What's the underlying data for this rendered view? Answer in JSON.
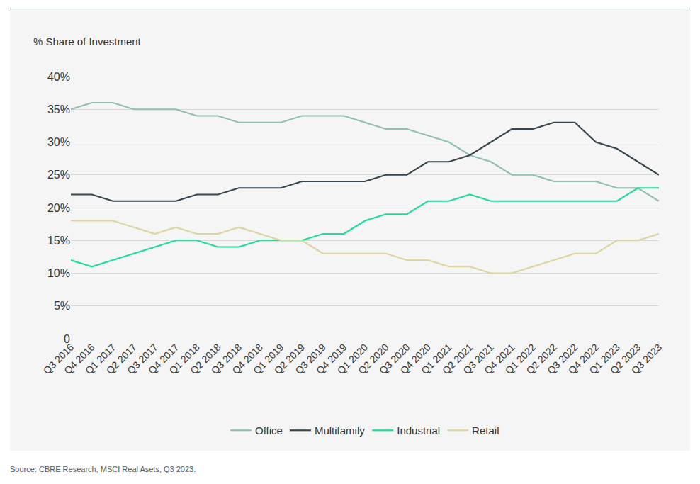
{
  "chart_data": {
    "type": "line",
    "y_label": "% Share of Investment",
    "source": "Source: CBRE Research, MSCI Real Asets, Q3 2023.",
    "categories": [
      "Q3 2016",
      "Q4 2016",
      "Q1 2017",
      "Q2 2017",
      "Q3 2017",
      "Q4 2017",
      "Q1 2018",
      "Q2 2018",
      "Q3 2018",
      "Q4 2018",
      "Q1 2019",
      "Q2 2019",
      "Q3 2019",
      "Q4 2019",
      "Q1 2020",
      "Q2 2020",
      "Q3 2020",
      "Q4 2020",
      "Q1 2021",
      "Q2 2021",
      "Q3 2021",
      "Q4 2021",
      "Q1 2022",
      "Q2 2022",
      "Q3 2022",
      "Q4 2022",
      "Q1 2023",
      "Q2 2023",
      "Q3 2023"
    ],
    "series": [
      {
        "name": "Office",
        "color": "#8fbfb5",
        "values": [
          35,
          36,
          36,
          35,
          35,
          35,
          34,
          34,
          33,
          33,
          33,
          34,
          34,
          34,
          33,
          32,
          32,
          31,
          30,
          28,
          27,
          25,
          25,
          24,
          24,
          24,
          23,
          23,
          21
        ]
      },
      {
        "name": "Multifamily",
        "color": "#37464d",
        "values": [
          22,
          22,
          21,
          21,
          21,
          21,
          22,
          22,
          23,
          23,
          23,
          24,
          24,
          24,
          24,
          25,
          25,
          27,
          27,
          28,
          30,
          32,
          32,
          33,
          33,
          30,
          29,
          27,
          25
        ]
      },
      {
        "name": "Industrial",
        "color": "#20dd96",
        "values": [
          12,
          11,
          12,
          13,
          14,
          15,
          15,
          14,
          14,
          15,
          15,
          15,
          16,
          16,
          18,
          19,
          19,
          21,
          21,
          22,
          21,
          21,
          21,
          21,
          21,
          21,
          21,
          23,
          23
        ]
      },
      {
        "name": "Retail",
        "color": "#dbd59e",
        "values": [
          18,
          18,
          18,
          17,
          16,
          17,
          16,
          16,
          17,
          16,
          15,
          15,
          13,
          13,
          13,
          13,
          12,
          12,
          11,
          11,
          10,
          10,
          11,
          12,
          13,
          13,
          15,
          15,
          16
        ]
      }
    ],
    "ylim": [
      0,
      40
    ],
    "yticks": [
      0,
      {
        "value": 5,
        "label": "5%"
      },
      {
        "value": 10,
        "label": "10%"
      },
      {
        "value": 15,
        "label": "15%"
      },
      {
        "value": 20,
        "label": "20%"
      },
      {
        "value": 25,
        "label": "25%"
      },
      {
        "value": 30,
        "label": "30%"
      },
      {
        "value": 35,
        "label": "35%"
      },
      {
        "value": 40,
        "label": "40%"
      }
    ],
    "grid": true,
    "legend": "bottom"
  }
}
